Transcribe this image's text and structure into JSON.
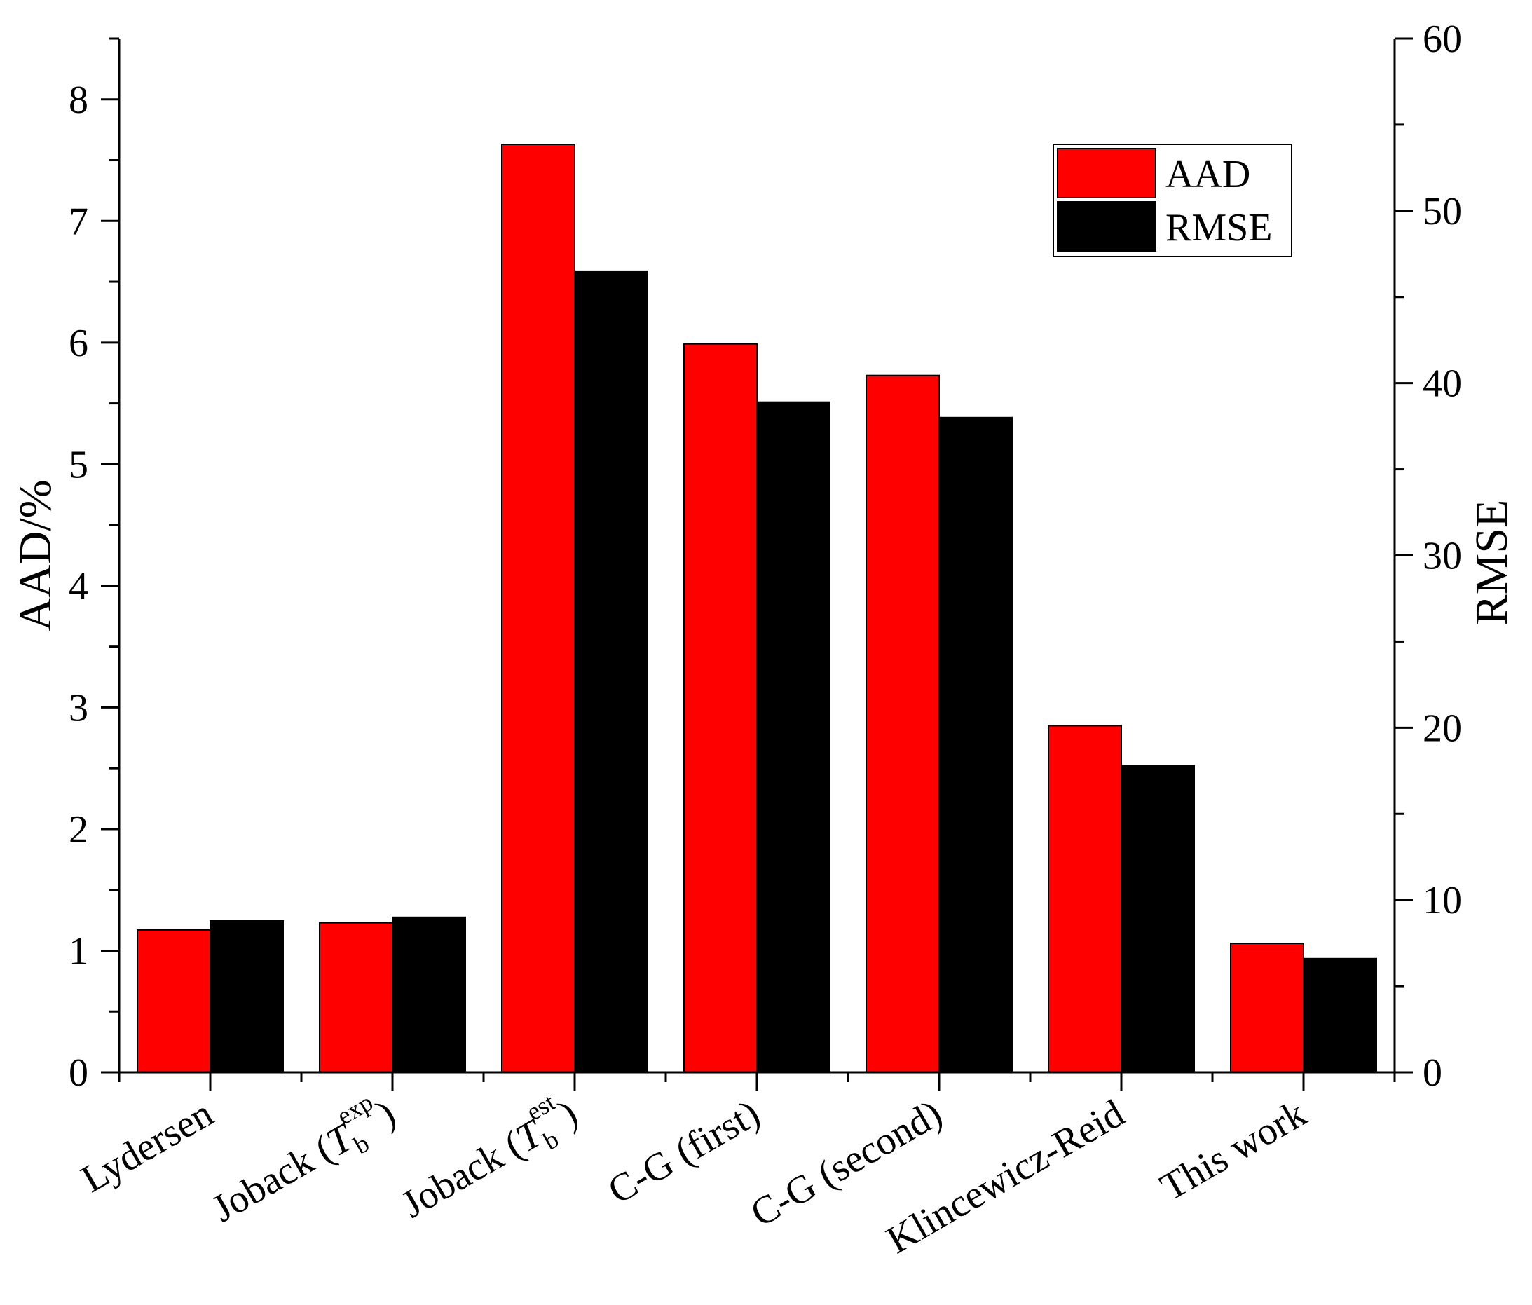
{
  "chart_data": {
    "type": "bar",
    "categories": [
      {
        "main": "Lydersen",
        "italic": "",
        "sub": "",
        "sup": "",
        "close": ""
      },
      {
        "main": "Joback (",
        "italic": "T",
        "sub": "b",
        "sup": "exp",
        "close": ")"
      },
      {
        "main": "Joback (",
        "italic": "T",
        "sub": "b",
        "sup": "est",
        "close": ")"
      },
      {
        "main": "C-G (first)",
        "italic": "",
        "sub": "",
        "sup": "",
        "close": ""
      },
      {
        "main": "C-G (second)",
        "italic": "",
        "sub": "",
        "sup": "",
        "close": ""
      },
      {
        "main": "Klincewicz-Reid",
        "italic": "",
        "sub": "",
        "sup": "",
        "close": ""
      },
      {
        "main": "This work",
        "italic": "",
        "sub": "",
        "sup": "",
        "close": ""
      }
    ],
    "series": [
      {
        "name": "AAD",
        "axis": "left",
        "color": "#ff0000",
        "values": [
          1.17,
          1.23,
          7.63,
          5.99,
          5.73,
          2.85,
          1.06
        ]
      },
      {
        "name": "RMSE",
        "axis": "right",
        "color": "#000000",
        "values": [
          8.8,
          9.0,
          46.5,
          38.9,
          38.0,
          17.8,
          6.6
        ]
      }
    ],
    "left_axis": {
      "label": "AAD/%",
      "min": 0,
      "max": 8.5,
      "ticks": [
        0,
        1,
        2,
        3,
        4,
        5,
        6,
        7,
        8
      ],
      "minor_step": 0.5
    },
    "right_axis": {
      "label": "RMSE",
      "min": 0,
      "max": 60,
      "ticks": [
        0,
        10,
        20,
        30,
        40,
        50,
        60
      ],
      "minor_step": 5
    },
    "legend": {
      "position": "top-right",
      "entries": [
        "AAD",
        "RMSE"
      ]
    },
    "grid": false
  }
}
